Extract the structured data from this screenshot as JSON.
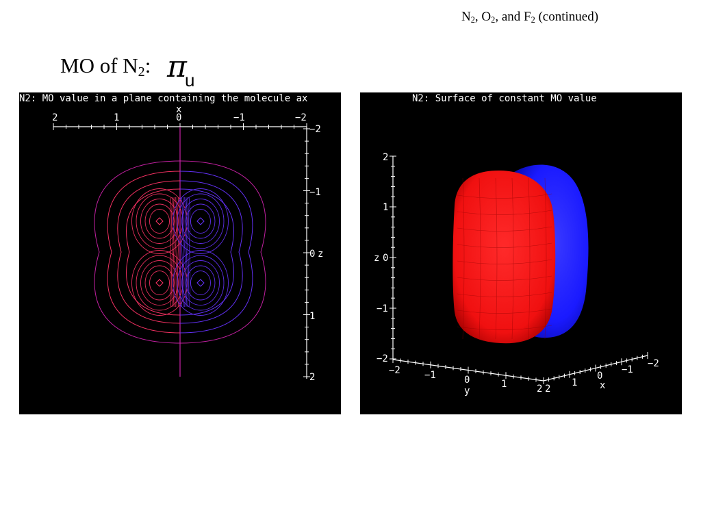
{
  "header": {
    "prefix": "N",
    "s1": "2",
    "m1": ", O",
    "s2": "2",
    "m2": ", and F",
    "s3": "2",
    "suffix": " (continued)"
  },
  "title": {
    "prefix": "MO of N",
    "sub": "2",
    "colon": ":",
    "symbol": "π",
    "symbol_sub": "u"
  },
  "left_panel": {
    "title": "N2: MO value in a plane containing the molecule ax",
    "top_axis": {
      "label": "x",
      "ticks": [
        "2",
        "1",
        "0",
        "−1",
        "−2"
      ]
    },
    "right_axis": {
      "label": "z",
      "ticks": [
        "−2",
        "−1",
        "0",
        "1",
        "2"
      ]
    },
    "colors": {
      "positive": "#ff3366",
      "negative": "#6633ff",
      "outer": "#cc22aa"
    }
  },
  "right_panel": {
    "title": "N2: Surface of constant MO value",
    "z_axis": {
      "label": "z",
      "ticks": [
        "2",
        "1",
        "0",
        "−1",
        "−2"
      ]
    },
    "y_axis": {
      "label": "y",
      "ticks": [
        "−2",
        "−1",
        "0",
        "1",
        "2"
      ]
    },
    "x_axis": {
      "label": "x",
      "ticks": [
        "2",
        "1",
        "0",
        "−1",
        "−2"
      ]
    },
    "colors": {
      "red_lobe": "#ff1a1a",
      "blue_lobe": "#1a1aff"
    }
  }
}
